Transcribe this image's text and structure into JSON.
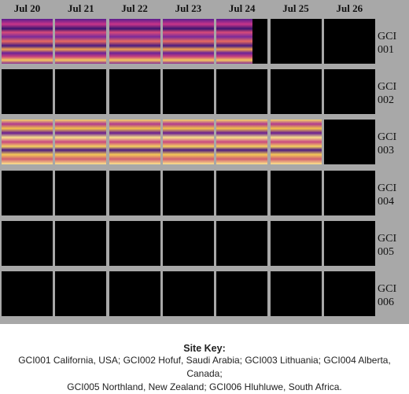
{
  "days": [
    "Jul 20",
    "Jul 21",
    "Jul 22",
    "Jul 23",
    "Jul 24",
    "Jul 25",
    "Jul 26"
  ],
  "rows": [
    {
      "label": "GCI\n001",
      "coverage": [
        1,
        1,
        1,
        1,
        0.7,
        0,
        0
      ],
      "palette": "purple"
    },
    {
      "label": "GCI\n002",
      "coverage": [
        0,
        0,
        0,
        0,
        0,
        0,
        0
      ],
      "palette": "purple"
    },
    {
      "label": "GCI\n003",
      "coverage": [
        1,
        1,
        1,
        1,
        1,
        1,
        0
      ],
      "palette": "yellow"
    },
    {
      "label": "GCI\n004",
      "coverage": [
        0,
        0,
        0,
        0,
        0,
        0,
        0
      ],
      "palette": "purple"
    },
    {
      "label": "GCI\n005",
      "coverage": [
        0,
        0,
        0,
        0,
        0,
        0,
        0
      ],
      "palette": "purple"
    },
    {
      "label": "GCI\n006",
      "coverage": [
        0,
        0,
        0,
        0,
        0,
        0,
        0
      ],
      "palette": "purple"
    }
  ],
  "key": {
    "title": "Site Key:",
    "line1": "GCI001 California, USA;  GCI002 Hofuf, Saudi Arabia;  GCI003 Lithuania;  GCI004 Alberta, Canada;",
    "line2": "GCI005 Northland, New Zealand;  GCI006 Hluhluwe, South Africa."
  },
  "colors": {
    "panel": "#a8a8a8",
    "empty": "#000000"
  }
}
